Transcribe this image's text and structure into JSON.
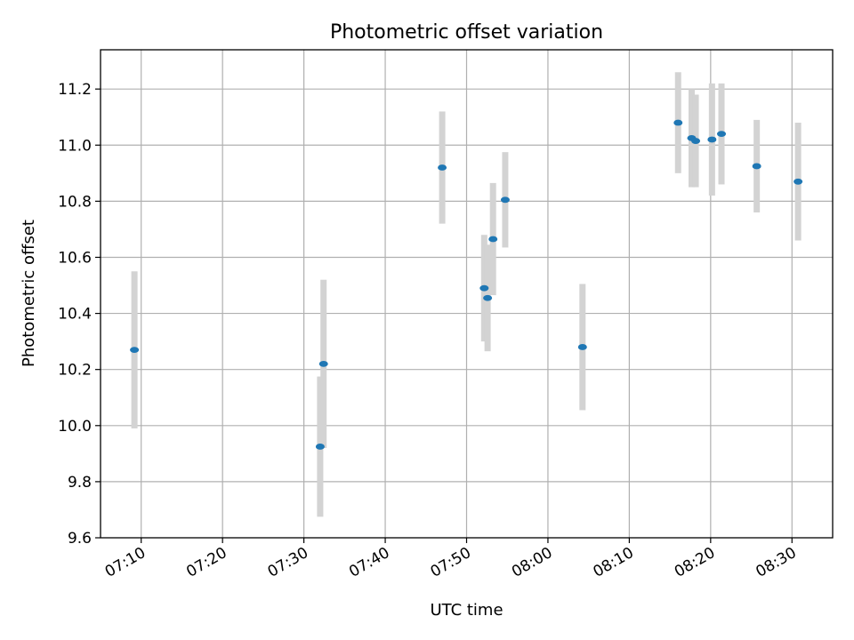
{
  "chart_data": {
    "type": "scatter",
    "title": "Photometric offset variation",
    "xlabel": "UTC time",
    "ylabel": "Photometric offset",
    "x_is_time": true,
    "xlim": [
      "07:05",
      "08:35"
    ],
    "ylim": [
      9.6,
      11.34
    ],
    "xticks": [
      "07:10",
      "07:20",
      "07:30",
      "07:40",
      "07:50",
      "08:00",
      "08:10",
      "08:20",
      "08:30"
    ],
    "yticks": [
      9.6,
      9.8,
      10.0,
      10.2,
      10.4,
      10.6,
      10.8,
      11.0,
      11.2
    ],
    "ytick_labels": [
      "9.6",
      "9.8",
      "10.0",
      "10.2",
      "10.4",
      "10.6",
      "10.8",
      "11.0",
      "11.2"
    ],
    "grid": true,
    "marker_color": "#1f77b4",
    "errorbar_color": "#d3d3d3",
    "points": [
      {
        "t": "07:09:10",
        "y": 10.27,
        "err": 0.28
      },
      {
        "t": "07:32:00",
        "y": 9.925,
        "err": 0.25
      },
      {
        "t": "07:32:25",
        "y": 10.22,
        "err": 0.3
      },
      {
        "t": "07:47:00",
        "y": 10.92,
        "err": 0.2
      },
      {
        "t": "07:52:10",
        "y": 10.49,
        "err": 0.19
      },
      {
        "t": "07:52:35",
        "y": 10.455,
        "err": 0.19
      },
      {
        "t": "07:53:15",
        "y": 10.665,
        "err": 0.2
      },
      {
        "t": "07:54:45",
        "y": 10.805,
        "err": 0.17
      },
      {
        "t": "08:04:15",
        "y": 10.28,
        "err": 0.225
      },
      {
        "t": "08:16:00",
        "y": 11.08,
        "err": 0.18
      },
      {
        "t": "08:17:40",
        "y": 11.025,
        "err": 0.175
      },
      {
        "t": "08:18:10",
        "y": 11.015,
        "err": 0.165
      },
      {
        "t": "08:20:10",
        "y": 11.02,
        "err": 0.2
      },
      {
        "t": "08:21:20",
        "y": 11.04,
        "err": 0.18
      },
      {
        "t": "08:25:40",
        "y": 10.925,
        "err": 0.165
      },
      {
        "t": "08:30:45",
        "y": 10.87,
        "err": 0.21
      }
    ]
  }
}
